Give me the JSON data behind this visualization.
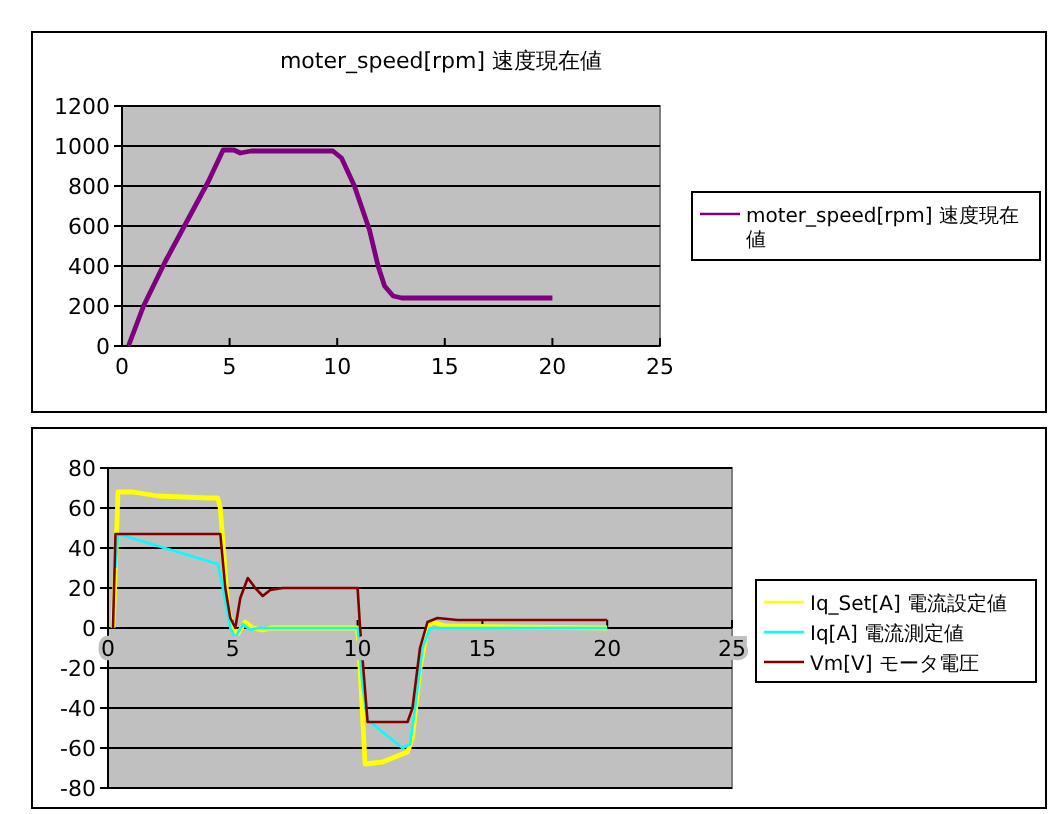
{
  "chart_data": [
    {
      "type": "line",
      "title": "moter_speed[rpm]  速度現在値",
      "xlim": [
        0,
        25
      ],
      "xticks": [
        0,
        5,
        10,
        15,
        20,
        25
      ],
      "ylim": [
        0,
        1200
      ],
      "yticks": [
        0,
        200,
        400,
        600,
        800,
        1000,
        1200
      ],
      "grid": "y",
      "legend": "right",
      "series": [
        {
          "name": "moter_speed[rpm]  速度現在値",
          "color": "#800080",
          "x": [
            0.3,
            1,
            2,
            3,
            4,
            4.7,
            5.2,
            5.5,
            6,
            9.8,
            10.2,
            10.8,
            11.5,
            11.9,
            12.2,
            12.6,
            13,
            20
          ],
          "values": [
            0,
            200,
            420,
            620,
            820,
            980,
            980,
            965,
            975,
            975,
            940,
            800,
            580,
            400,
            300,
            250,
            240,
            240
          ]
        }
      ]
    },
    {
      "type": "line",
      "xlim": [
        0,
        25
      ],
      "xticks": [
        0,
        5,
        10,
        15,
        20,
        25
      ],
      "ylim": [
        -80,
        80
      ],
      "yticks": [
        -80,
        -60,
        -40,
        -20,
        0,
        20,
        40,
        60,
        80
      ],
      "grid": "y",
      "legend": "right",
      "series": [
        {
          "name": "Iq_Set[A] 電流設定値",
          "color": "#ffff00",
          "x": [
            0.2,
            0.3,
            0.4,
            1,
            2,
            4,
            4.4,
            4.5,
            4.8,
            5,
            5.2,
            5.5,
            5.8,
            6.2,
            6.5,
            10,
            10.1,
            10.3,
            11,
            12,
            12.2,
            12.5,
            12.8,
            13,
            13.5,
            20
          ],
          "values": [
            0,
            30,
            68,
            68,
            66,
            65,
            65,
            60,
            10,
            0,
            -3,
            3,
            0,
            -1,
            0,
            0,
            -20,
            -68,
            -67,
            -62,
            -55,
            -20,
            0,
            3,
            1,
            0
          ]
        },
        {
          "name": "Iq[A]  電流測定値",
          "color": "#00ffff",
          "x": [
            0.3,
            0.4,
            4.4,
            4.6,
            4.9,
            5.1,
            5.4,
            5.7,
            6,
            10,
            10.2,
            10.4,
            11.8,
            12.1,
            12.3,
            12.6,
            12.9,
            20
          ],
          "values": [
            30,
            47,
            32,
            20,
            0,
            -5,
            2,
            -1,
            0,
            0,
            -30,
            -46,
            -60,
            -58,
            -40,
            -10,
            0,
            0
          ]
        },
        {
          "name": "Vm[V]  モータ電圧",
          "color": "#800000",
          "x": [
            0.2,
            0.3,
            4.5,
            4.7,
            4.9,
            5.1,
            5.3,
            5.6,
            5.9,
            6.2,
            6.5,
            7,
            10,
            10.1,
            10.4,
            12,
            12.2,
            12.5,
            12.8,
            13.2,
            14,
            20
          ],
          "values": [
            0,
            47,
            47,
            20,
            5,
            0,
            15,
            25,
            20,
            16,
            19,
            20,
            20,
            0,
            -47,
            -47,
            -40,
            -10,
            3,
            5,
            4,
            4
          ]
        }
      ]
    }
  ]
}
